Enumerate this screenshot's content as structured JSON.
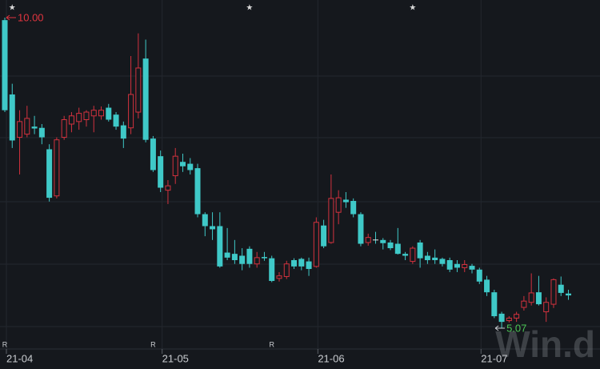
{
  "chart_data": {
    "type": "candlestick",
    "categories": [
      "21-04",
      null,
      null,
      null,
      null,
      null,
      null,
      null,
      null,
      null,
      null,
      null,
      null,
      null,
      null,
      null,
      null,
      null,
      null,
      null,
      null,
      "21-05",
      null,
      null,
      null,
      null,
      null,
      null,
      null,
      null,
      null,
      null,
      null,
      null,
      null,
      null,
      null,
      null,
      null,
      null,
      null,
      null,
      "21-06",
      null,
      null,
      null,
      null,
      null,
      null,
      null,
      null,
      null,
      null,
      null,
      null,
      null,
      null,
      null,
      null,
      null,
      null,
      null,
      null,
      null,
      "21-07",
      null,
      null,
      null,
      null,
      null,
      null,
      null,
      null,
      null,
      null,
      null,
      null
    ],
    "open": [
      9.96,
      8.78,
      8.1,
      8.15,
      8.27,
      8.25,
      7.91,
      7.17,
      8.1,
      8.31,
      8.35,
      8.38,
      8.44,
      8.44,
      8.57,
      8.46,
      8.29,
      8.25,
      8.5,
      9.35,
      8.08,
      7.8,
      7.26,
      7.49,
      7.71,
      7.68,
      7.61,
      6.88,
      6.69,
      6.69,
      6.27,
      6.25,
      6.22,
      6.33,
      6.09,
      6.2,
      6.18,
      5.86,
      5.89,
      6.15,
      6.17,
      6.13,
      6.05,
      6.7,
      6.43,
      6.91,
      7.11,
      7.09,
      6.88,
      6.43,
      6.47,
      6.47,
      6.43,
      6.41,
      6.25,
      6.13,
      6.43,
      6.22,
      6.19,
      6.17,
      6.15,
      6.09,
      6.03,
      6.06,
      6.0,
      5.84,
      5.64,
      5.3,
      5.19,
      5.23,
      5.4,
      5.48,
      5.64,
      5.33,
      5.45,
      5.76,
      5.62
    ],
    "high": [
      10.0,
      8.95,
      8.53,
      8.6,
      8.44,
      8.31,
      7.99,
      8.1,
      8.44,
      8.5,
      8.57,
      8.53,
      8.6,
      8.59,
      8.63,
      8.5,
      8.35,
      9.39,
      9.75,
      9.65,
      8.12,
      7.89,
      7.42,
      7.93,
      7.84,
      7.77,
      7.68,
      6.91,
      6.91,
      6.91,
      6.66,
      6.47,
      6.34,
      6.37,
      6.28,
      6.28,
      6.22,
      5.96,
      6.14,
      6.18,
      6.19,
      6.19,
      6.83,
      6.79,
      7.51,
      7.26,
      7.23,
      7.13,
      6.91,
      6.57,
      6.6,
      6.5,
      6.47,
      6.66,
      6.28,
      6.37,
      6.47,
      6.28,
      6.32,
      6.19,
      6.19,
      6.15,
      6.15,
      6.09,
      6.03,
      5.9,
      5.68,
      5.33,
      5.26,
      5.33,
      5.58,
      5.94,
      5.9,
      5.56,
      5.86,
      5.89,
      5.68
    ],
    "low": [
      8.5,
      7.93,
      7.51,
      8.1,
      8.15,
      7.99,
      7.08,
      7.13,
      8.06,
      8.18,
      8.22,
      8.27,
      8.18,
      8.38,
      8.35,
      8.22,
      7.93,
      8.15,
      8.4,
      8.02,
      7.55,
      7.23,
      7.04,
      7.36,
      7.55,
      7.51,
      6.83,
      6.53,
      6.47,
      6.03,
      6.15,
      6.09,
      5.99,
      6.03,
      6.03,
      6.14,
      5.8,
      5.81,
      5.85,
      6.01,
      5.99,
      5.9,
      6.03,
      6.34,
      6.41,
      6.72,
      6.98,
      6.83,
      6.37,
      6.38,
      6.41,
      6.32,
      6.31,
      6.24,
      6.15,
      6.09,
      6.03,
      6.09,
      6.09,
      6.05,
      5.96,
      5.96,
      5.96,
      5.94,
      5.77,
      5.58,
      5.23,
      5.07,
      5.16,
      5.17,
      5.35,
      5.43,
      5.43,
      5.17,
      5.39,
      5.58,
      5.52
    ],
    "close": [
      8.53,
      8.05,
      8.35,
      8.4,
      8.24,
      8.1,
      7.14,
      8.06,
      8.38,
      8.44,
      8.48,
      8.5,
      8.53,
      8.53,
      8.38,
      8.27,
      8.08,
      8.78,
      9.2,
      8.06,
      7.58,
      7.3,
      7.33,
      7.8,
      7.64,
      7.58,
      6.88,
      6.69,
      6.64,
      6.05,
      6.19,
      6.15,
      6.09,
      6.09,
      6.19,
      6.18,
      5.82,
      5.9,
      6.09,
      6.05,
      6.05,
      6.01,
      6.75,
      6.37,
      7.13,
      7.14,
      7.07,
      6.88,
      6.41,
      6.51,
      6.47,
      6.42,
      6.34,
      6.25,
      6.22,
      6.34,
      6.18,
      6.15,
      6.15,
      6.09,
      6.0,
      6.03,
      6.08,
      6.0,
      5.81,
      5.64,
      5.26,
      5.17,
      5.23,
      5.29,
      5.5,
      5.63,
      5.45,
      5.48,
      5.84,
      5.63,
      5.59
    ],
    "up_color": "#d2323e",
    "down_color": "#3fc9c8",
    "max_label": "10.00",
    "max_label_color": "#e0353f",
    "min_label": "5.07",
    "min_label_color": "#4cc655",
    "top_markers": [
      "★",
      "★",
      "★"
    ],
    "bottom_markers": [
      "R",
      "R",
      "R"
    ],
    "watermark": "Win.d"
  }
}
